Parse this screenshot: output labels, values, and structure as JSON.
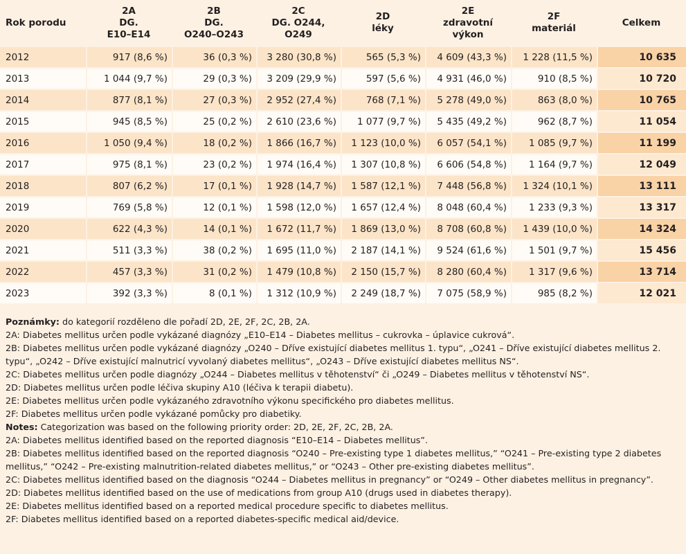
{
  "headers": {
    "year": "Rok porodu",
    "c2a": [
      "2A",
      "DG.",
      "E10–E14"
    ],
    "c2b": [
      "2B",
      "DG.",
      "O240–O243"
    ],
    "c2c": [
      "2C",
      "DG. O244,",
      "O249"
    ],
    "c2d": [
      "2D",
      "léky"
    ],
    "c2e": [
      "2E",
      "zdravotní",
      "výkon"
    ],
    "c2f": [
      "2F",
      "materiál"
    ],
    "total": "Celkem"
  },
  "rows": [
    {
      "year": "2012",
      "a": "917 (8,6 %)",
      "b": "36 (0,3 %)",
      "c": "3 280 (30,8 %)",
      "d": "565 (5,3 %)",
      "e": "4 609 (43,3 %)",
      "f": "1 228 (11,5 %)",
      "total": "10 635"
    },
    {
      "year": "2013",
      "a": "1 044 (9,7 %)",
      "b": "29 (0,3 %)",
      "c": "3 209 (29,9 %)",
      "d": "597 (5,6 %)",
      "e": "4 931 (46,0 %)",
      "f": "910 (8,5 %)",
      "total": "10 720"
    },
    {
      "year": "2014",
      "a": "877 (8,1 %)",
      "b": "27 (0,3 %)",
      "c": "2 952 (27,4 %)",
      "d": "768 (7,1 %)",
      "e": "5 278 (49,0 %)",
      "f": "863 (8,0 %)",
      "total": "10 765"
    },
    {
      "year": "2015",
      "a": "945 (8,5 %)",
      "b": "25 (0,2 %)",
      "c": "2 610 (23,6 %)",
      "d": "1 077 (9,7 %)",
      "e": "5 435 (49,2 %)",
      "f": "962 (8,7 %)",
      "total": "11 054"
    },
    {
      "year": "2016",
      "a": "1 050 (9,4 %)",
      "b": "18 (0,2 %)",
      "c": "1 866 (16,7 %)",
      "d": "1 123 (10,0 %)",
      "e": "6 057 (54,1 %)",
      "f": "1 085 (9,7 %)",
      "total": "11 199"
    },
    {
      "year": "2017",
      "a": "975 (8,1 %)",
      "b": "23 (0,2 %)",
      "c": "1 974 (16,4 %)",
      "d": "1 307 (10,8 %)",
      "e": "6 606 (54,8 %)",
      "f": "1 164 (9,7 %)",
      "total": "12 049"
    },
    {
      "year": "2018",
      "a": "807 (6,2 %)",
      "b": "17 (0,1 %)",
      "c": "1 928 (14,7 %)",
      "d": "1 587 (12,1 %)",
      "e": "7 448 (56,8 %)",
      "f": "1 324 (10,1 %)",
      "total": "13 111"
    },
    {
      "year": "2019",
      "a": "769 (5,8 %)",
      "b": "12 (0,1 %)",
      "c": "1 598 (12,0 %)",
      "d": "1 657 (12,4 %)",
      "e": "8 048 (60,4 %)",
      "f": "1 233 (9,3 %)",
      "total": "13 317"
    },
    {
      "year": "2020",
      "a": "622 (4,3 %)",
      "b": "14 (0,1 %)",
      "c": "1 672 (11,7 %)",
      "d": "1 869 (13,0 %)",
      "e": "8 708 (60,8 %)",
      "f": "1 439 (10,0 %)",
      "total": "14 324"
    },
    {
      "year": "2021",
      "a": "511 (3,3 %)",
      "b": "38 (0,2 %)",
      "c": "1 695 (11,0 %)",
      "d": "2 187 (14,1 %)",
      "e": "9 524 (61,6 %)",
      "f": "1 501 (9,7 %)",
      "total": "15 456"
    },
    {
      "year": "2022",
      "a": "457 (3,3 %)",
      "b": "31 (0,2 %)",
      "c": "1 479 (10,8 %)",
      "d": "2 150 (15,7 %)",
      "e": "8 280 (60,4 %)",
      "f": "1 317 (9,6 %)",
      "total": "13 714"
    },
    {
      "year": "2023",
      "a": "392 (3,3 %)",
      "b": "8 (0,1 %)",
      "c": "1 312 (10,9 %)",
      "d": "2 249 (18,7 %)",
      "e": "7 075 (58,9 %)",
      "f": "985 (8,2 %)",
      "total": "12 021"
    }
  ],
  "notes": [
    {
      "bold": "Poznámky:",
      "text": " do kategorií rozděleno dle pořadí 2D, 2E, 2F, 2C, 2B, 2A."
    },
    {
      "bold": "",
      "text": "2A: Diabetes mellitus určen podle vykázané diagnózy „E10–E14 – Diabetes mellitus – cukrovka – úplavice cukrová“."
    },
    {
      "bold": "",
      "text": "2B: Diabetes mellitus určen podle vykázané diagnózy „O240 – Dříve existující diabetes mellitus 1. typu“, „O241 – Dříve existující diabetes mellitus 2. typu“, „O242 – Dříve existující malnutricí vyvolaný diabetes mellitus“, „O243 – Dříve existující diabetes mellitus NS“."
    },
    {
      "bold": "",
      "text": "2C: Diabetes mellitus určen podle diagnózy „O244 – Diabetes mellitus v těhotenství“ či „O249 – Diabetes mellitus v těhotenství NS“."
    },
    {
      "bold": "",
      "text": "2D: Diabetes mellitus určen podle léčiva skupiny A10 (léčiva k terapii diabetu)."
    },
    {
      "bold": "",
      "text": "2E: Diabetes mellitus určen podle vykázaného zdravotního výkonu specifického pro diabetes mellitus."
    },
    {
      "bold": "",
      "text": "2F: Diabetes mellitus určen podle vykázané pomůcky pro diabetiky."
    },
    {
      "bold": "Notes:",
      "text": " Categorization was based on the following priority order: 2D, 2E, 2F, 2C, 2B, 2A."
    },
    {
      "bold": "",
      "text": "2A: Diabetes mellitus identified based on the reported diagnosis “E10–E14 – Diabetes mellitus”."
    },
    {
      "bold": "",
      "text": "2B: Diabetes mellitus identified based on the reported diagnosis “O240 – Pre-existing type 1 diabetes mellitus,” “O241 – Pre-existing type 2 diabetes mellitus,” “O242 – Pre-existing malnutrition-related diabetes mellitus,” or “O243 – Other pre-existing diabetes mellitus”."
    },
    {
      "bold": "",
      "text": "2C: Diabetes mellitus identified based on the diagnosis “O244 – Diabetes mellitus in pregnancy” or “O249 – Other diabetes mellitus in pregnancy”."
    },
    {
      "bold": "",
      "text": "2D: Diabetes mellitus identified based on the use of medications from group A10 (drugs used in diabetes therapy)."
    },
    {
      "bold": "",
      "text": "2E: Diabetes mellitus identified based on a reported medical procedure specific to diabetes mellitus."
    },
    {
      "bold": "",
      "text": "2F: Diabetes mellitus identified based on a reported diabetes-specific medical aid/device."
    }
  ]
}
